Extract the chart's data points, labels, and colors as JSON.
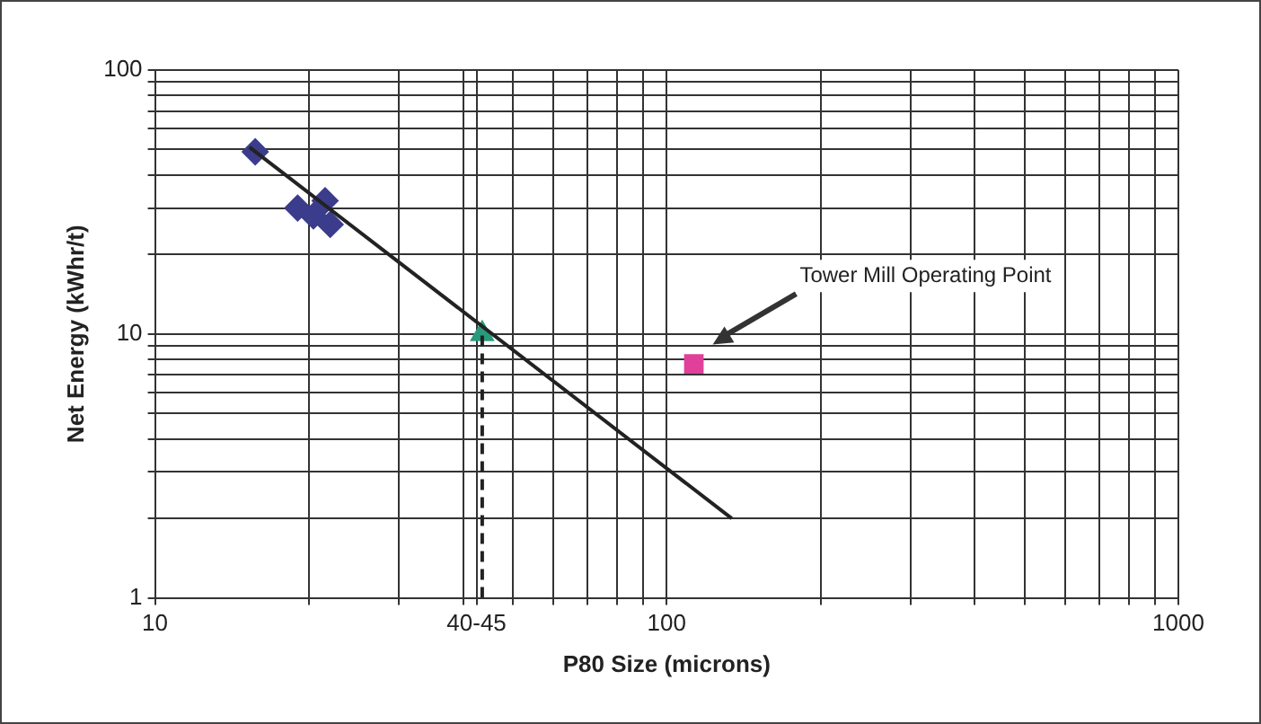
{
  "chart_data": {
    "type": "scatter",
    "xlabel": "P80 Size (microns)",
    "ylabel": "Net Energy (kWhr/t)",
    "log": "xy",
    "grid": true,
    "legend": false,
    "xlim": [
      10,
      1000
    ],
    "ylim": [
      1,
      100
    ],
    "xticks": [
      10,
      {
        "value": 20,
        "label": null
      },
      {
        "value": 30,
        "label": null
      },
      {
        "value": 40,
        "label": null
      },
      {
        "value": 42.5,
        "label": "40-45"
      },
      {
        "value": 50,
        "label": null
      },
      {
        "value": 60,
        "label": null
      },
      {
        "value": 70,
        "label": null
      },
      {
        "value": 80,
        "label": null
      },
      {
        "value": 90,
        "label": null
      },
      100,
      {
        "value": 200,
        "label": null
      },
      {
        "value": 300,
        "label": null
      },
      {
        "value": 400,
        "label": null
      },
      {
        "value": 500,
        "label": null
      },
      {
        "value": 600,
        "label": null
      },
      {
        "value": 700,
        "label": null
      },
      {
        "value": 800,
        "label": null
      },
      {
        "value": 900,
        "label": null
      },
      1000
    ],
    "yticks": [
      1,
      {
        "value": 2,
        "label": null
      },
      {
        "value": 3,
        "label": null
      },
      {
        "value": 4,
        "label": null
      },
      {
        "value": 5,
        "label": null
      },
      {
        "value": 6,
        "label": null
      },
      {
        "value": 7,
        "label": null
      },
      {
        "value": 8,
        "label": null
      },
      {
        "value": 9,
        "label": null
      },
      10,
      {
        "value": 20,
        "label": null
      },
      {
        "value": 30,
        "label": null
      },
      {
        "value": 40,
        "label": null
      },
      {
        "value": 50,
        "label": null
      },
      {
        "value": 60,
        "label": null
      },
      {
        "value": 70,
        "label": null
      },
      {
        "value": 80,
        "label": null
      },
      {
        "value": 90,
        "label": null
      },
      100
    ],
    "series": [
      {
        "type": "line",
        "color": "#222222",
        "marker": "none",
        "line_style": "solid",
        "x": [
          15.3,
          134
        ],
        "values": [
          51,
          2
        ]
      },
      {
        "color": "#3c3c8c",
        "marker": "diamond",
        "x": [
          15.7,
          19,
          20.4,
          21.5,
          22
        ],
        "values": [
          49,
          30,
          28,
          32,
          26
        ]
      },
      {
        "type": "line",
        "color": "#222222",
        "marker": "none",
        "line_style": "dashed",
        "x": [
          43.6,
          43.6
        ],
        "values": [
          1,
          10
        ]
      },
      {
        "color": "#2a9a7c",
        "marker": "triangle",
        "x": [
          43.6
        ],
        "values": [
          10
        ]
      },
      {
        "color": "#e0409a",
        "marker": "square",
        "x": [
          113
        ],
        "values": [
          7.7
        ]
      }
    ],
    "annotations": [
      "Tower Mill Operating Point"
    ]
  }
}
